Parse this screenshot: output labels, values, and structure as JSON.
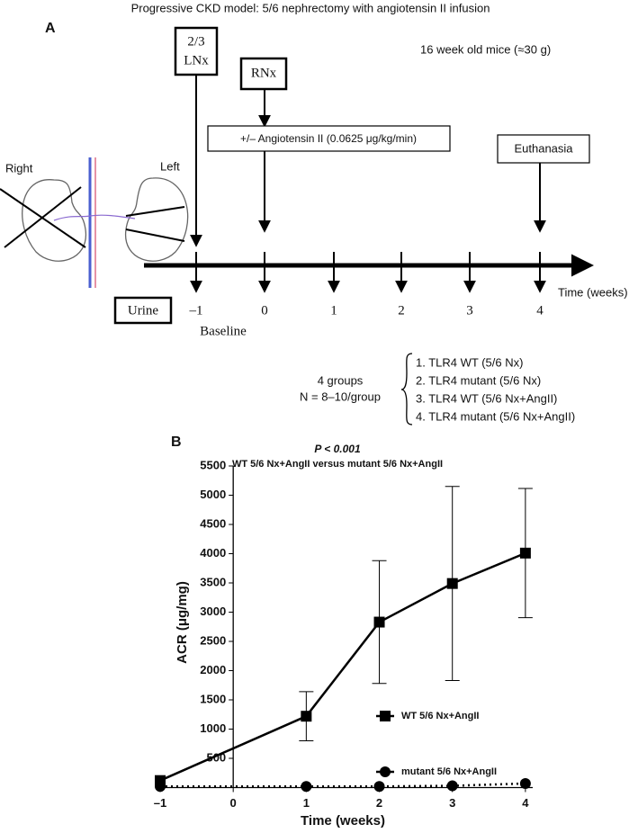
{
  "panel_a": {
    "label": "A",
    "title": "Progressive CKD model: 5/6 nephrectomy with angiotensin II infusion",
    "mice": "16 week old mice (≈30 g)",
    "lnx": [
      "2/3",
      "LNx"
    ],
    "rnx": "RNx",
    "angiotensin": "+/– Angiotensin II (0.0625 μg/kg/min)",
    "euthanasia": "Euthanasia",
    "right": "Right",
    "left": "Left",
    "urine": "Urine",
    "timepoints": [
      "–1",
      "0",
      "1",
      "2",
      "3",
      "4"
    ],
    "time_label": "Time (weeks)",
    "baseline": "Baseline",
    "groups_count": "4 groups",
    "n": "N = 8–10/group",
    "groups": [
      "1. TLR4 WT (5/6 Nx)",
      "2. TLR4 mutant (5/6 Nx)",
      "3. TLR4 WT  (5/6 Nx+AngII)",
      "4. TLR4 mutant (5/6 Nx+AngII)"
    ]
  },
  "panel_b_label": "B",
  "chart_data": {
    "type": "line",
    "title": "P < 0.001",
    "subtitle": "WT 5/6 Nx+AngII versus mutant 5/6 Nx+AngII",
    "x_label": "Time (weeks)",
    "y_label": "ACR (μg/mg)",
    "x": [
      -1,
      1,
      2,
      3,
      4
    ],
    "xlim": [
      -1,
      4.1
    ],
    "xticks": [
      {
        "value": -1,
        "label": "–1"
      },
      0,
      1,
      2,
      3,
      4
    ],
    "ylim": [
      0,
      5500
    ],
    "yticks": [
      500,
      1000,
      1500,
      2000,
      2500,
      3000,
      3500,
      4000,
      4500,
      5000,
      5500
    ],
    "y_axis_crosses": 0,
    "series": [
      {
        "name": "WT 5/6 Nx+AngII",
        "color": "#000000",
        "marker": "square",
        "line_style": "solid",
        "values": [
          120,
          1220,
          2830,
          3490,
          4010
        ],
        "errors": [
          null,
          420,
          1050,
          1660,
          1105
        ]
      },
      {
        "name": "mutant 5/6 Nx+AngII",
        "color": "#000000",
        "marker": "circle",
        "line_style": "dotted",
        "values": [
          20,
          20,
          20,
          30,
          70
        ]
      }
    ]
  }
}
